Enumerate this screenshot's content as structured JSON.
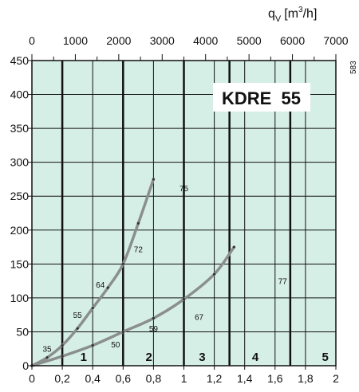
{
  "chart_data": {
    "type": "line",
    "title": "KDRE  55",
    "top_axis": {
      "label": "qV [m3/h]",
      "label_main": "q",
      "label_sub": "V",
      "label_unit": "[m",
      "label_sup": "3",
      "label_unit_end": "/h]",
      "range": [
        0,
        7000
      ],
      "ticks": [
        "0",
        "1000",
        "2000",
        "3000",
        "4000",
        "5000",
        "6000",
        "7000"
      ]
    },
    "x_axis": {
      "label": "",
      "range": [
        0,
        2
      ],
      "ticks": [
        "0",
        "0,2",
        "0,4",
        "0,6",
        "0,8",
        "1",
        "1,2",
        "1,4",
        "1,6",
        "1,8",
        "2"
      ]
    },
    "y_axis": {
      "label": "",
      "range": [
        0,
        450
      ],
      "ticks": [
        "0",
        "50",
        "100",
        "150",
        "200",
        "250",
        "300",
        "350",
        "400",
        "450"
      ]
    },
    "grid": true,
    "series": [
      {
        "points": [
          [
            0,
            0
          ],
          [
            0.1,
            12
          ],
          [
            0.2,
            30
          ],
          [
            0.3,
            55
          ],
          [
            0.4,
            85
          ],
          [
            0.5,
            115
          ],
          [
            0.6,
            150
          ],
          [
            0.7,
            210
          ],
          [
            0.8,
            275
          ]
        ]
      },
      {
        "points": [
          [
            0,
            0
          ],
          [
            0.2,
            14
          ],
          [
            0.4,
            30
          ],
          [
            0.6,
            50
          ],
          [
            0.8,
            70
          ],
          [
            1.0,
            98
          ],
          [
            1.2,
            135
          ],
          [
            1.33,
            175
          ]
        ]
      }
    ],
    "annotations": [
      {
        "text": "35",
        "x": 0.1,
        "y": 25
      },
      {
        "text": "55",
        "x": 0.3,
        "y": 75
      },
      {
        "text": "64",
        "x": 0.45,
        "y": 120
      },
      {
        "text": "72",
        "x": 0.7,
        "y": 172
      },
      {
        "text": "75",
        "x": 1.0,
        "y": 262
      },
      {
        "text": "50",
        "x": 0.55,
        "y": 32
      },
      {
        "text": "59",
        "x": 0.8,
        "y": 55
      },
      {
        "text": "67",
        "x": 1.1,
        "y": 72
      },
      {
        "text": "77",
        "x": 1.65,
        "y": 125
      }
    ],
    "zones": [
      {
        "text": "1",
        "x": 0.34
      },
      {
        "text": "2",
        "x": 0.77
      },
      {
        "text": "3",
        "x": 1.12
      },
      {
        "text": "4",
        "x": 1.47
      },
      {
        "text": "5",
        "x": 1.93
      }
    ],
    "zone_boundaries": [
      0.2,
      0.6,
      1.0,
      1.3,
      1.7
    ],
    "background_color": "#d6efe6",
    "curve_color": "#8a8f8d",
    "side_code": "583"
  }
}
